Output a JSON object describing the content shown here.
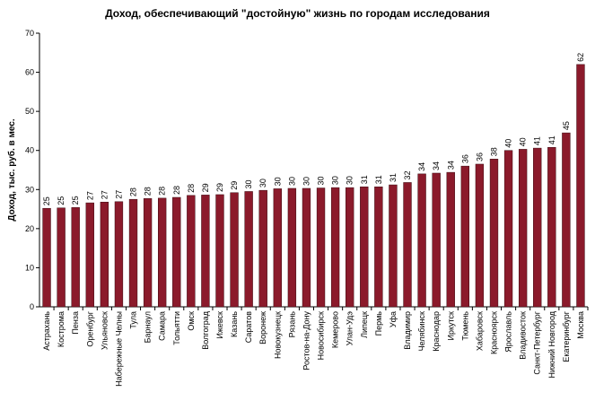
{
  "chart_data": {
    "type": "bar",
    "title": "Доход, обеспечивающий \"достойную\" жизнь по городам исследования",
    "xlabel": "",
    "ylabel": "Доход, тыс. руб. в мес.",
    "ylim": [
      0,
      70
    ],
    "yticks": [
      0,
      10,
      20,
      30,
      40,
      50,
      60,
      70
    ],
    "grid": false,
    "bar_color": "#8b1a2b",
    "categories": [
      "Астрахань",
      "Кострома",
      "Пенза",
      "Оренбург",
      "Ульяновск",
      "Набережные Челны",
      "Тула",
      "Барнаул",
      "Самара",
      "Тольятти",
      "Омск",
      "Волгоград",
      "Ижевск",
      "Казань",
      "Саратов",
      "Воронеж",
      "Новокузнецк",
      "Рязань",
      "Ростов-на-Дону",
      "Новосибирск",
      "Кемерово",
      "Улан-Удэ",
      "Липецк",
      "Пермь",
      "Уфа",
      "Владимир",
      "Челябинск",
      "Краснодар",
      "Иркутск",
      "Тюмень",
      "Хабаровск",
      "Красноярск",
      "Ярославль",
      "Владивосток",
      "Санкт-Петербург",
      "Нижний Новгород",
      "Екатеринбург",
      "Москва"
    ],
    "values": [
      25.2,
      25.3,
      25.4,
      26.6,
      26.8,
      26.9,
      27.5,
      27.7,
      27.8,
      28.0,
      28.5,
      28.6,
      28.7,
      29.2,
      29.5,
      29.8,
      30.2,
      30.3,
      30.3,
      30.4,
      30.5,
      30.5,
      30.7,
      30.7,
      31.2,
      31.8,
      34.0,
      34.2,
      34.4,
      36.0,
      36.5,
      37.8,
      40.0,
      40.3,
      40.6,
      40.8,
      44.5,
      62.0
    ],
    "data_labels": [
      "25",
      "25",
      "25",
      "27",
      "27",
      "27",
      "28",
      "28",
      "28",
      "28",
      "28",
      "29",
      "29",
      "29",
      "30",
      "30",
      "30",
      "30",
      "30",
      "30",
      "30",
      "30",
      "31",
      "31",
      "31",
      "32",
      "34",
      "34",
      "34",
      "36",
      "36",
      "38",
      "40",
      "40",
      "41",
      "41",
      "45",
      "62"
    ]
  }
}
